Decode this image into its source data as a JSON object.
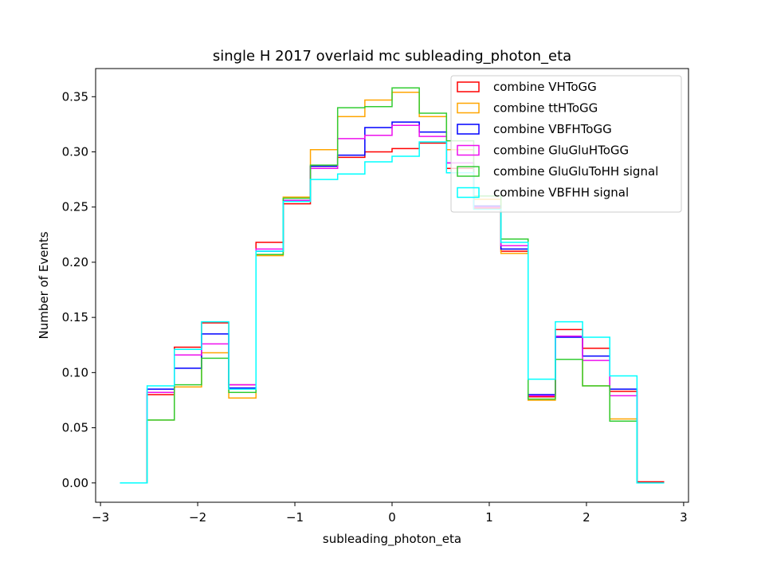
{
  "chart_data": {
    "type": "histogram-step",
    "title": "single H 2017 overlaid mc subleading_photon_eta",
    "xlabel": "subleading_photon_eta",
    "ylabel": "Number of Events",
    "xlim": [
      -3.05,
      3.05
    ],
    "ylim": [
      -0.0175,
      0.3755
    ],
    "xticks": [
      -3,
      -2,
      -1,
      0,
      1,
      2,
      3
    ],
    "xtick_labels": [
      "−3",
      "−2",
      "−1",
      "0",
      "1",
      "2",
      "3"
    ],
    "yticks": [
      0.0,
      0.05,
      0.1,
      0.15,
      0.2,
      0.25,
      0.3,
      0.35
    ],
    "ytick_labels": [
      "0.00",
      "0.05",
      "0.10",
      "0.15",
      "0.20",
      "0.25",
      "0.30",
      "0.35"
    ],
    "legend_position": "upper right",
    "bin_edges": [
      -2.8,
      -2.52,
      -2.24,
      -1.96,
      -1.68,
      -1.4,
      -1.12,
      -0.84,
      -0.56,
      -0.28,
      0.0,
      0.28,
      0.56,
      0.84,
      1.12,
      1.4,
      1.68,
      1.96,
      2.24,
      2.52,
      2.8
    ],
    "series": [
      {
        "name": "combine VHToGG",
        "color": "#ff0000",
        "values": [
          0.0,
          0.08,
          0.123,
          0.145,
          0.089,
          0.218,
          0.253,
          0.287,
          0.295,
          0.3,
          0.303,
          0.308,
          0.285,
          0.249,
          0.21,
          0.078,
          0.139,
          0.122,
          0.083,
          0.001
        ]
      },
      {
        "name": "combine ttHToGG",
        "color": "#ffa500",
        "values": [
          0.0,
          0.057,
          0.087,
          0.118,
          0.077,
          0.206,
          0.259,
          0.302,
          0.332,
          0.347,
          0.354,
          0.332,
          0.302,
          0.257,
          0.208,
          0.075,
          0.112,
          0.088,
          0.058,
          0.0
        ]
      },
      {
        "name": "combine VBFHToGG",
        "color": "#0000ff",
        "values": [
          0.0,
          0.085,
          0.104,
          0.135,
          0.086,
          0.21,
          0.256,
          0.287,
          0.297,
          0.322,
          0.327,
          0.318,
          0.29,
          0.251,
          0.212,
          0.08,
          0.132,
          0.115,
          0.085,
          0.0
        ]
      },
      {
        "name": "combine GluGluHToGG",
        "color": "#ee10ee",
        "values": [
          0.0,
          0.082,
          0.116,
          0.126,
          0.089,
          0.212,
          0.256,
          0.285,
          0.312,
          0.315,
          0.324,
          0.314,
          0.29,
          0.25,
          0.215,
          0.079,
          0.133,
          0.111,
          0.079,
          0.0
        ]
      },
      {
        "name": "combine GluGluToHH signal",
        "color": "#33cc33",
        "values": [
          0.0,
          0.057,
          0.089,
          0.113,
          0.082,
          0.207,
          0.258,
          0.288,
          0.34,
          0.341,
          0.358,
          0.335,
          0.31,
          0.26,
          0.221,
          0.076,
          0.112,
          0.088,
          0.056,
          0.0
        ]
      },
      {
        "name": "combine VBFHH signal",
        "color": "#00ffff",
        "values": [
          0.0,
          0.088,
          0.121,
          0.146,
          0.085,
          0.21,
          0.255,
          0.275,
          0.28,
          0.291,
          0.296,
          0.309,
          0.281,
          0.248,
          0.218,
          0.094,
          0.146,
          0.132,
          0.097,
          0.0
        ]
      }
    ]
  }
}
